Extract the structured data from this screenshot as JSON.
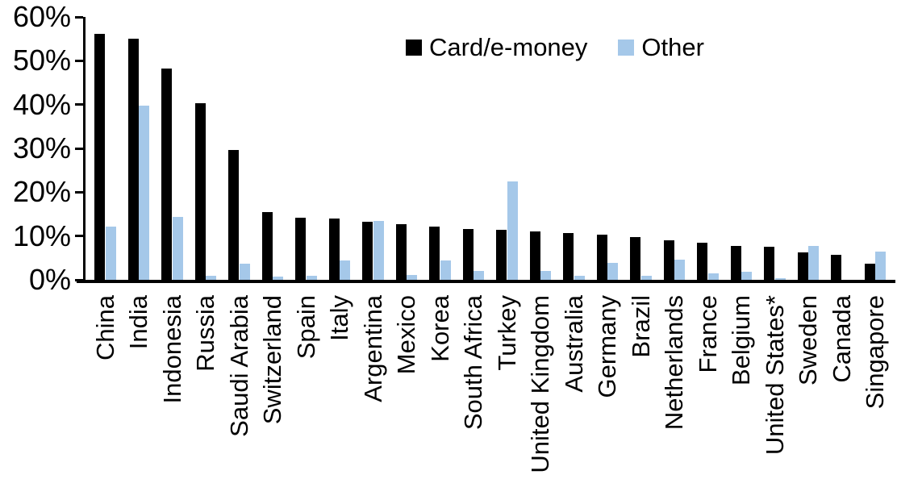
{
  "chart_data": {
    "type": "bar",
    "title": "",
    "categories": [
      "China",
      "India",
      "Indonesia",
      "Russia",
      "Saudi Arabia",
      "Switzerland",
      "Spain",
      "Italy",
      "Argentina",
      "Mexico",
      "Korea",
      "South Africa",
      "Turkey",
      "United Kingdom",
      "Australia",
      "Germany",
      "Brazil",
      "Netherlands",
      "France",
      "Belgium",
      "United States*",
      "Sweden",
      "Canada",
      "Singapore"
    ],
    "series": [
      {
        "name": "Card/e-money",
        "color": "#000000",
        "values": [
          56.2,
          55.0,
          48.2,
          40.3,
          29.7,
          15.5,
          14.1,
          14.0,
          13.2,
          12.7,
          12.1,
          11.6,
          11.4,
          11.0,
          10.7,
          10.4,
          9.7,
          9.0,
          8.4,
          7.7,
          7.5,
          6.3,
          5.7,
          3.6
        ]
      },
      {
        "name": "Other",
        "color": "#A5C8E9",
        "values": [
          12.2,
          39.7,
          14.3,
          0.9,
          3.7,
          0.7,
          0.9,
          4.4,
          13.5,
          1.1,
          4.4,
          2.1,
          22.4,
          2.0,
          0.9,
          3.8,
          0.9,
          4.6,
          1.4,
          1.8,
          0.3,
          7.8,
          0.0,
          6.5
        ]
      }
    ],
    "xlabel": "",
    "ylabel": "",
    "ylim": [
      0,
      60
    ],
    "y_tick_step": 10,
    "y_tick_labels": [
      "0%",
      "10%",
      "20%",
      "30%",
      "40%",
      "50%",
      "60%"
    ],
    "grid": "off",
    "legend_position": "top-center"
  }
}
